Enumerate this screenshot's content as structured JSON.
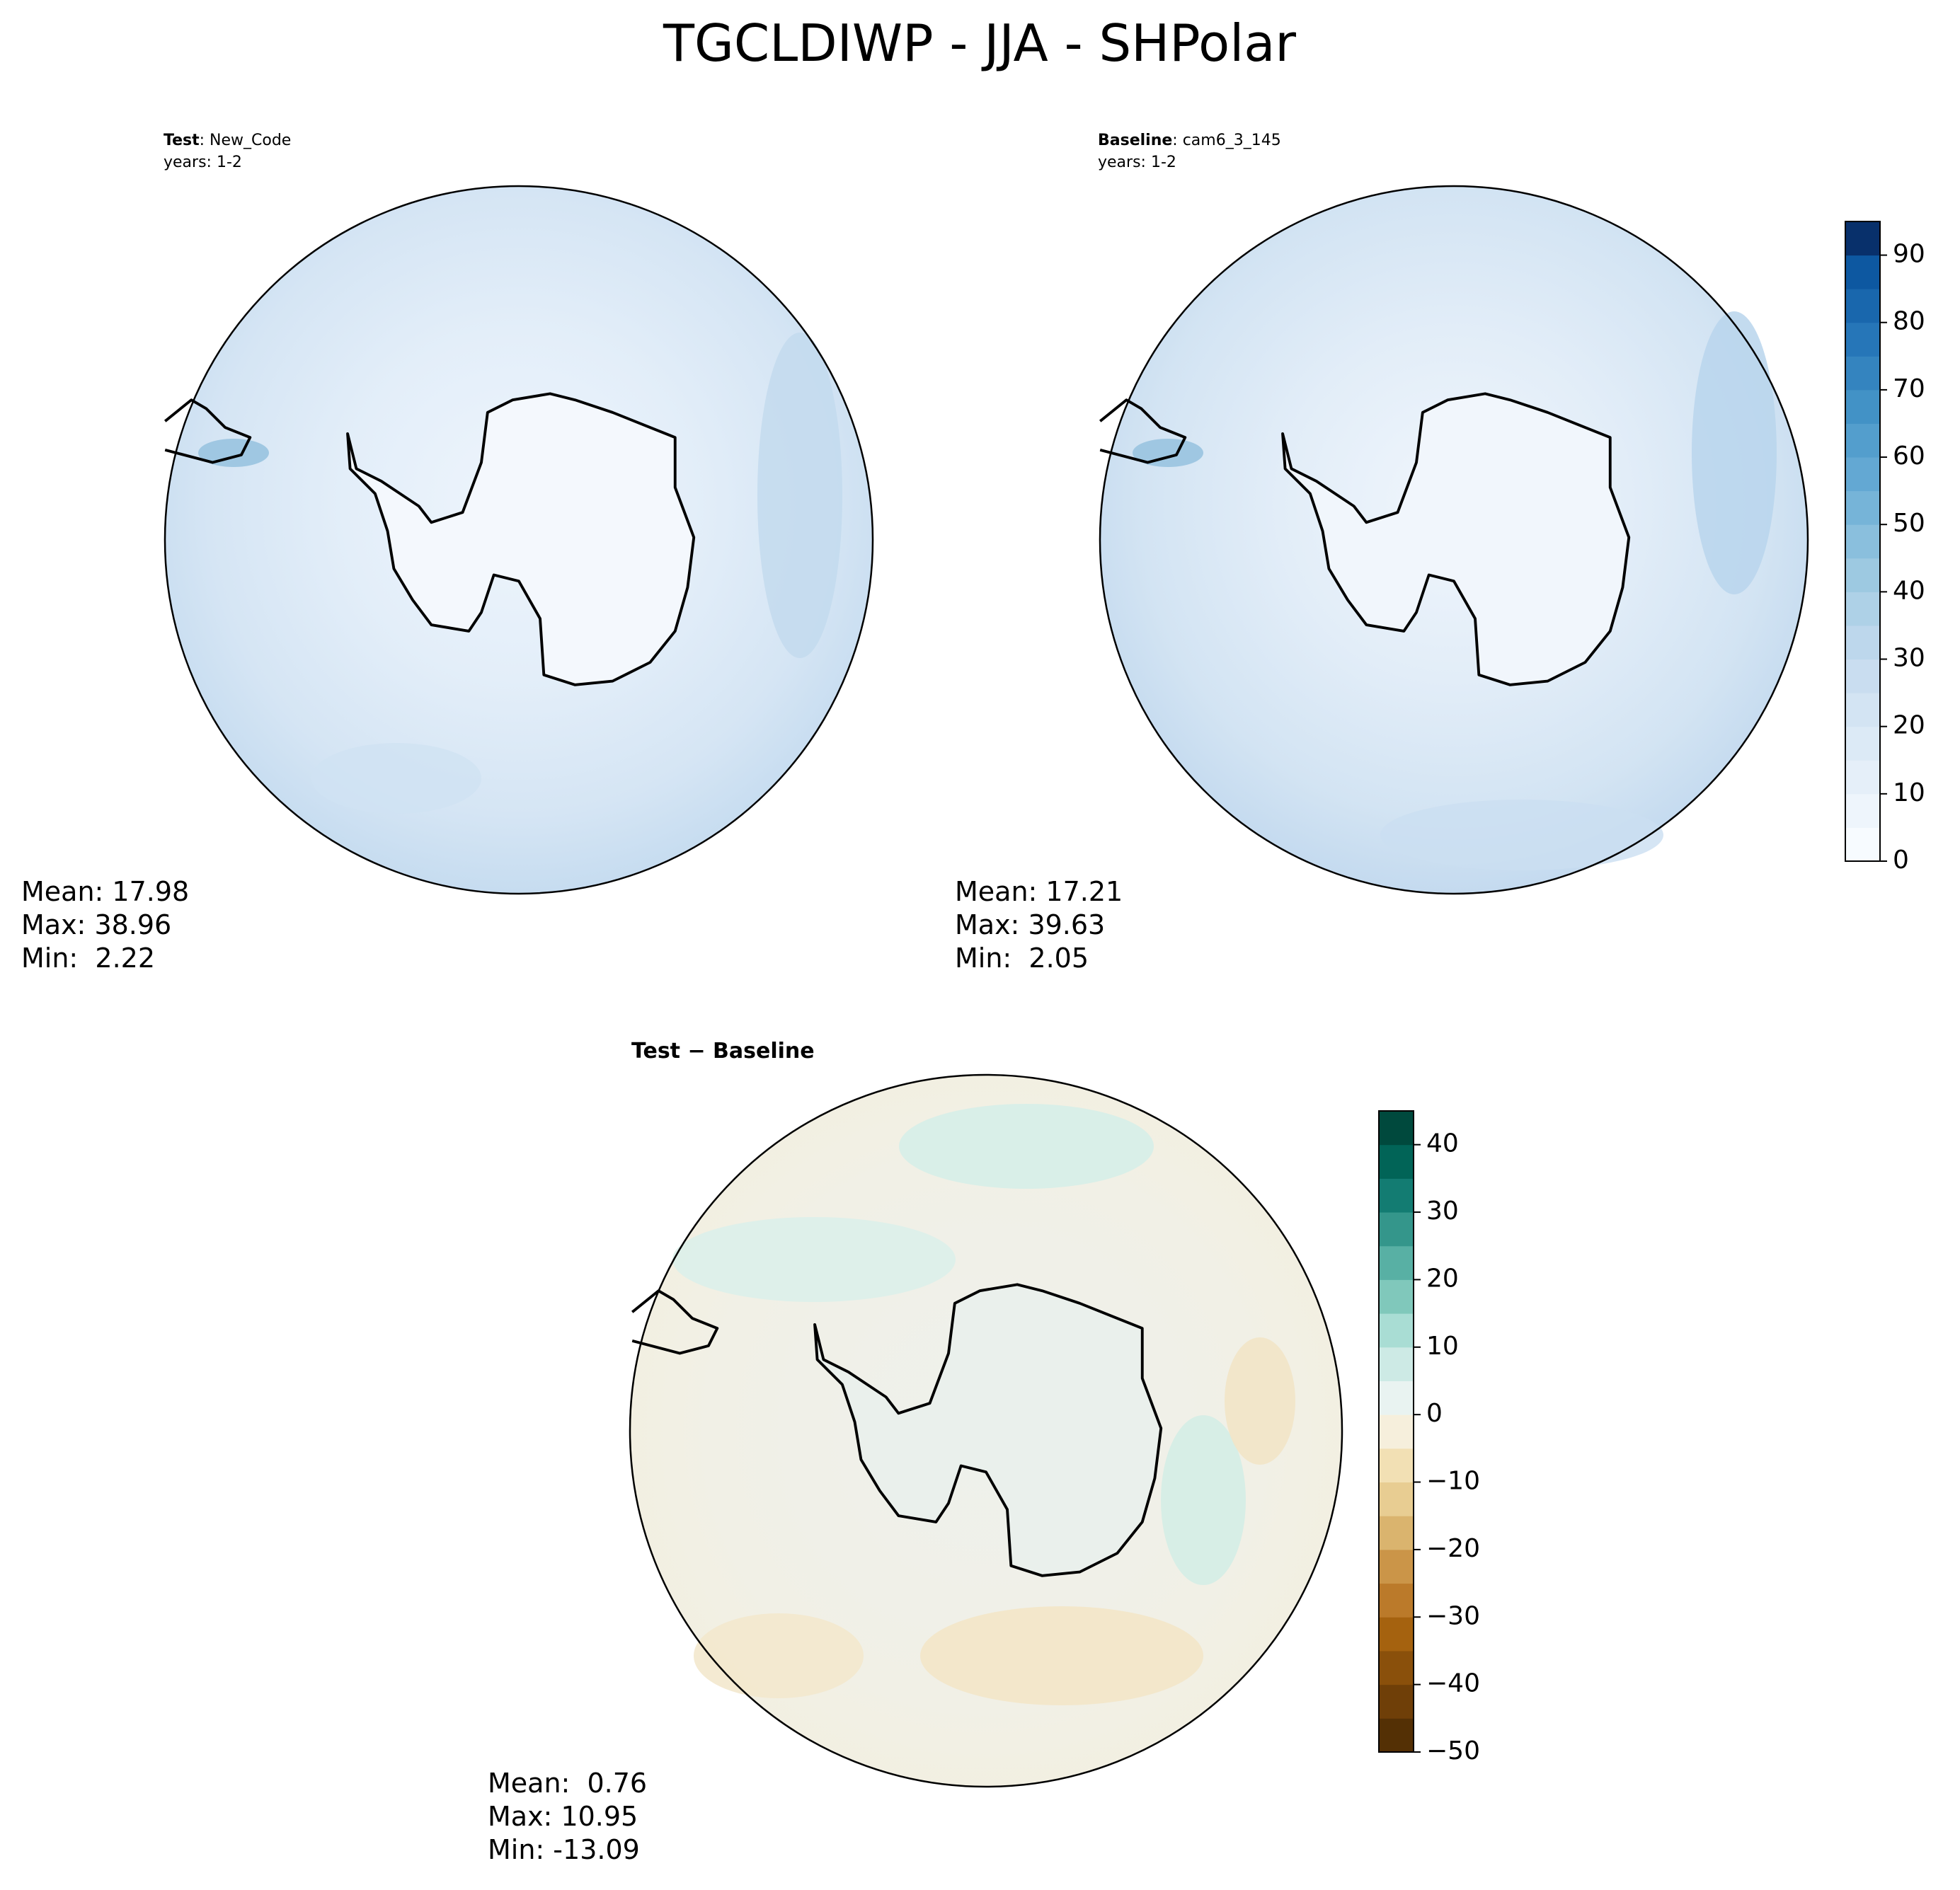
{
  "title": "TGCLDIWP - JJA - SHPolar",
  "panels": [
    {
      "label": "Test",
      "case": ": New_Code",
      "years": "years: 1-2",
      "stats": [
        "Mean: 17.98",
        "Max: 38.96",
        "Min:  2.22"
      ]
    },
    {
      "label": "Baseline",
      "case": ": cam6_3_145",
      "years": "years: 1-2",
      "stats": [
        "Mean: 17.21",
        "Max: 39.63",
        "Min:  2.05"
      ]
    },
    {
      "label": "Test − Baseline",
      "stats": [
        "Mean:  0.76",
        "Max: 10.95",
        "Min: -13.09"
      ]
    }
  ],
  "colorbars": [
    {
      "lim": [
        0,
        95
      ],
      "ticks": [
        0,
        10,
        20,
        30,
        40,
        50,
        60,
        70,
        80,
        90
      ],
      "colors": [
        "#f7fbff",
        "#eef5fc",
        "#e5eff9",
        "#dceaf6",
        "#d3e4f3",
        "#c9ddf0",
        "#bdd7ec",
        "#aed1e7",
        "#9dc9e1",
        "#8abfdd",
        "#76b4d8",
        "#63a8d3",
        "#539ecd",
        "#4292c6",
        "#3484bf",
        "#2676b8",
        "#1967ad",
        "#0d58a1",
        "#08306b"
      ]
    },
    {
      "lim": [
        -50,
        45
      ],
      "ticks": [
        {
          "value": -50,
          "label": "−50"
        },
        {
          "value": -40,
          "label": "−40"
        },
        {
          "value": -30,
          "label": "−30"
        },
        {
          "value": -20,
          "label": "−20"
        },
        {
          "value": -10,
          "label": "−10"
        },
        0,
        10,
        20,
        30,
        40
      ],
      "colors": [
        "#543005",
        "#6f3f08",
        "#8a500b",
        "#a5620f",
        "#bb7a2a",
        "#cb9548",
        "#dab46e",
        "#e8cd92",
        "#f2e0b4",
        "#f6efdc",
        "#e9f3f1",
        "#cdeae5",
        "#a9ddd4",
        "#80c8bb",
        "#58b0a4",
        "#34968b",
        "#137c72",
        "#016457",
        "#00493d"
      ]
    }
  ]
}
